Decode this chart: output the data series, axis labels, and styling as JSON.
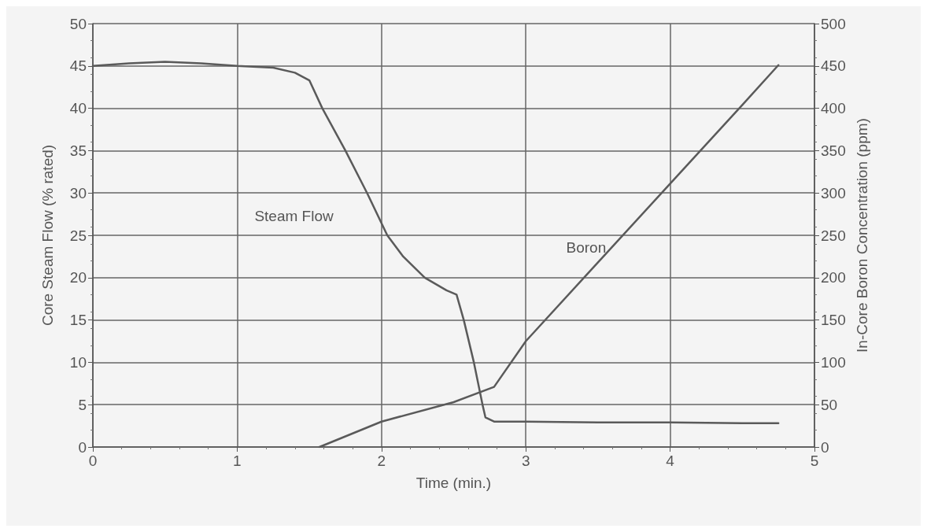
{
  "chart_data": {
    "type": "line",
    "xlabel": "Time (min.)",
    "ylabel": "Core Steam Flow (% rated)",
    "y2label": "In-Core Boron Concentration (ppm)",
    "xlim": [
      0,
      5
    ],
    "xticks": [
      0,
      1,
      2,
      3,
      4,
      5
    ],
    "ylim": [
      0,
      50
    ],
    "yticks": [
      0,
      5,
      10,
      15,
      20,
      25,
      30,
      35,
      40,
      45,
      50
    ],
    "y2lim": [
      0,
      500
    ],
    "y2ticks": [
      0,
      50,
      100,
      150,
      200,
      250,
      300,
      350,
      400,
      450,
      500
    ],
    "grid": true,
    "legend": false,
    "marker": "none",
    "line_style": "solid",
    "series": [
      {
        "name": "Steam Flow",
        "color": "#5a5a5a",
        "x": [
          0,
          0.25,
          0.5,
          0.75,
          1,
          1.25,
          1.4,
          1.5,
          1.59,
          1.75,
          1.9,
          2.04,
          2.15,
          2.3,
          2.45,
          2.52,
          2.57,
          2.64,
          2.7,
          2.72,
          2.78,
          3,
          3.5,
          4,
          4.5,
          4.75
        ],
        "values": [
          45,
          45.3,
          45.5,
          45.3,
          45,
          44.8,
          44.2,
          43.3,
          40,
          35,
          30,
          25,
          22.5,
          20,
          18.5,
          18,
          15,
          10,
          5,
          3.5,
          3,
          3,
          2.9,
          2.9,
          2.8,
          2.8
        ]
      },
      {
        "name": "Boron",
        "color": "#5a5a5a",
        "axis": "y2",
        "x": [
          1.57,
          2,
          2.5,
          2.78,
          3,
          3.5,
          4,
          4.5,
          4.75
        ],
        "values": [
          0,
          30,
          53,
          71,
          125,
          218,
          311,
          404,
          451
        ]
      }
    ]
  }
}
